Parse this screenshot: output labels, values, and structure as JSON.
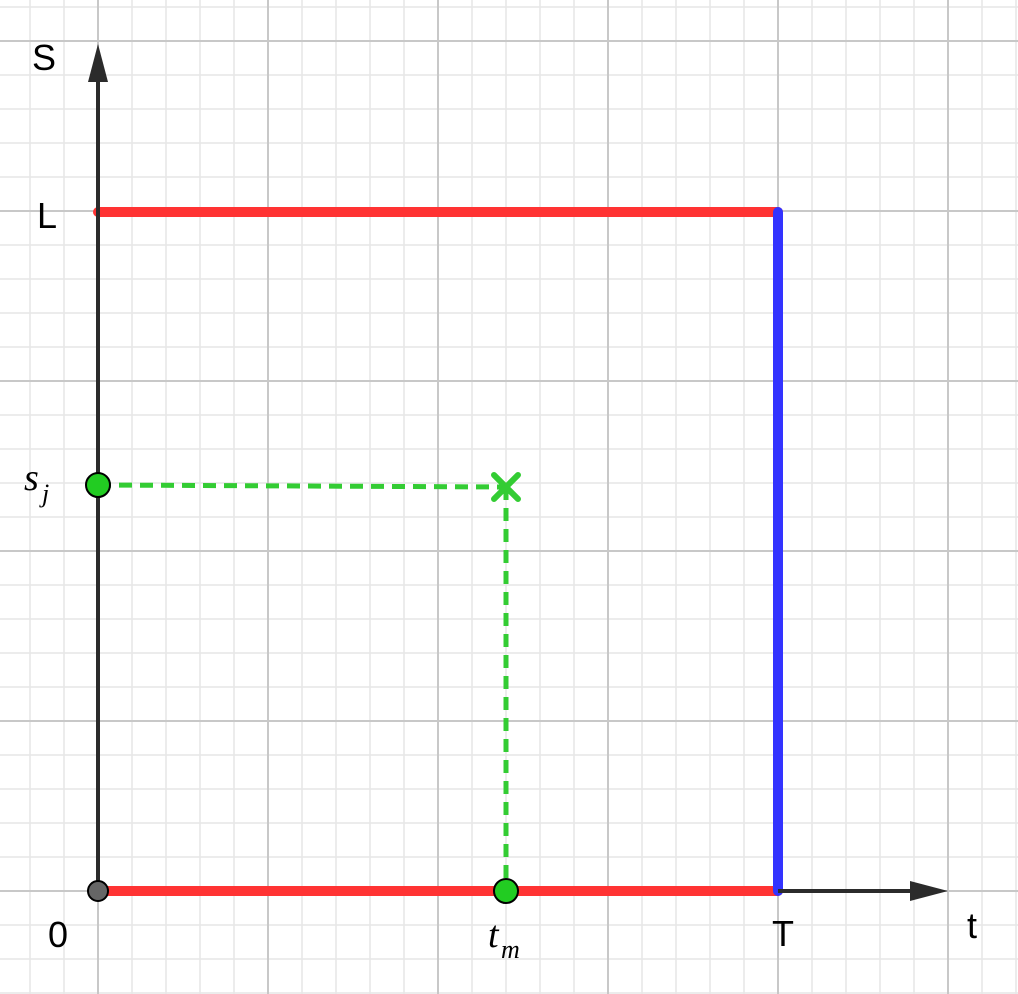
{
  "diagram": {
    "axes": {
      "x_label": "t",
      "y_label": "S"
    },
    "labels": {
      "origin": "0",
      "t_end": "T",
      "s_top": "L",
      "s_j_main": "s",
      "s_j_sub": "j",
      "t_m_main": "t",
      "t_m_sub": "m"
    },
    "colors": {
      "boundary_red": "#ff3333",
      "boundary_blue": "#3333ff",
      "guide_green": "#33cc33",
      "axis": "#2b2b2b",
      "grid_major": "#c8c8c8",
      "grid_minor": "#e6e6e6"
    },
    "icons": {
      "marker": "cross-mark-icon",
      "point": "circle-dot-icon"
    }
  }
}
